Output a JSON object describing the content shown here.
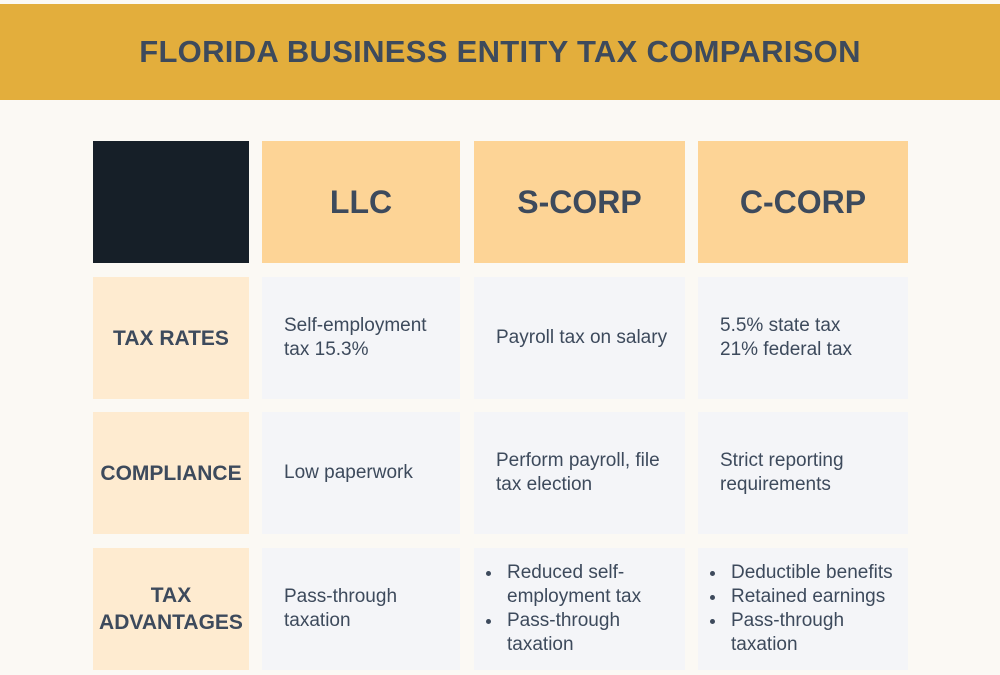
{
  "title": "FLORIDA BUSINESS ENTITY TAX COMPARISON",
  "columns": [
    "LLC",
    "S-CORP",
    "C-CORP"
  ],
  "rows": [
    {
      "label": "TAX RATES",
      "cells": [
        {
          "text": "Self-employment tax 15.3%"
        },
        {
          "text": "Payroll tax on salary"
        },
        {
          "lines": [
            "5.5% state tax",
            "21% federal tax"
          ]
        }
      ]
    },
    {
      "label": "COMPLIANCE",
      "cells": [
        {
          "text": "Low paperwork"
        },
        {
          "text": "Perform payroll, file tax election"
        },
        {
          "text": "Strict reporting requirements"
        }
      ]
    },
    {
      "label": "TAX ADVANTAGES",
      "cells": [
        {
          "text": "Pass-through taxation"
        },
        {
          "bullets": [
            "Reduced self-employment tax",
            "Pass-through taxation"
          ]
        },
        {
          "bullets": [
            "Deductible benefits",
            "Retained earnings",
            "Pass-through taxation"
          ]
        }
      ]
    }
  ],
  "colors": {
    "banner": "#e3ae3c",
    "header": "#fdd496",
    "row_header": "#feebd0",
    "cell": "#f4f5f8",
    "corner": "#161f28",
    "text": "#3d4a5c"
  }
}
